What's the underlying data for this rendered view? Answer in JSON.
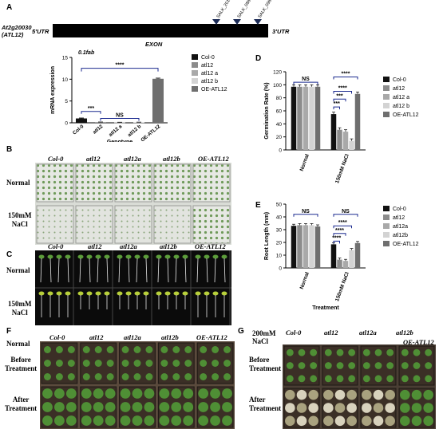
{
  "panel_labels": {
    "a": "A",
    "b": "B",
    "c": "C",
    "d": "D",
    "e": "E",
    "f": "F",
    "g": "G"
  },
  "gene_model": {
    "gene_name_line1": "At2g20030",
    "gene_name_line2": "(ATL12)",
    "utr5": "5'UTR",
    "utr3": "3'UTR",
    "exon": "EXON",
    "insertions": [
      "SALK_201558C",
      "SALK_086832C",
      "SALK_096538C"
    ]
  },
  "genotypes_plates": [
    "Col-0",
    "atl12",
    "atl12a",
    "atl12b",
    "OE-ATL12"
  ],
  "row_labels": {
    "normal": "Normal",
    "nacl150_line1": "150mM",
    "nacl150_line2": "NaCl",
    "before_line1": "Before",
    "before_line2": "Treatment",
    "after_line1": "After",
    "after_line2": "Treatment",
    "nacl200_line1": "200mM",
    "nacl200_line2": "NaCl"
  },
  "colors": {
    "col0": "#111111",
    "atl12": "#8c8c8c",
    "atl12a": "#a9a9a9",
    "atl12b": "#d3d3d3",
    "oe": "#6f6f6f",
    "significance": "#1b2a8f",
    "gene_bar": "#000000"
  },
  "chart_data": [
    {
      "type": "bar",
      "panel": "A",
      "annotation": "0.1fab",
      "categories": [
        "Col-0",
        "atl12",
        "atl12 a",
        "atl12 b",
        "OE-ATL12"
      ],
      "values": [
        1.0,
        0.15,
        0.1,
        0.12,
        10.1
      ],
      "errors": [
        0.1,
        0.03,
        0.03,
        0.03,
        0.15
      ],
      "xlabel": "Genotype",
      "ylabel": "mRNA expression",
      "ylim": [
        0,
        15
      ],
      "yticks": [
        "0",
        "5",
        "10",
        "15"
      ],
      "legend": [
        "Col-0",
        "atl12",
        "atl12 a",
        "atl12 b",
        "OE-ATL12"
      ],
      "legend_position": "right",
      "significance": [
        {
          "label": "****",
          "from": 0,
          "to": 4
        },
        {
          "label": "***",
          "from": 0,
          "to": 1
        },
        {
          "label": "NS",
          "from": 1,
          "to": 3
        }
      ]
    },
    {
      "type": "bar",
      "panel": "D",
      "categories": [
        "Normal",
        "150mM NaCl"
      ],
      "series": [
        {
          "name": "Col-0",
          "values": [
            97,
            55
          ]
        },
        {
          "name": "atl12",
          "values": [
            97,
            31
          ]
        },
        {
          "name": "atl12 a",
          "values": [
            97,
            28
          ]
        },
        {
          "name": "atl12 b",
          "values": [
            97,
            14
          ]
        },
        {
          "name": "OE-ATL12",
          "values": [
            97,
            86
          ]
        }
      ],
      "ylabel": "Germination Rate (%)",
      "ylim": [
        0,
        120
      ],
      "yticks": [
        "0",
        "20",
        "40",
        "60",
        "80",
        "100",
        "120"
      ],
      "legend_position": "right",
      "significance": [
        {
          "label": "NS",
          "group": "Normal"
        },
        {
          "label": "****",
          "from": 0,
          "to": 4
        },
        {
          "label": "****",
          "from": 0,
          "to": 3
        },
        {
          "label": "***",
          "from": 0,
          "to": 2
        },
        {
          "label": "***",
          "from": 0,
          "to": 1
        }
      ]
    },
    {
      "type": "bar",
      "panel": "E",
      "categories": [
        "Normal",
        "150mM NaCl"
      ],
      "series": [
        {
          "name": "Col-0",
          "values": [
            33,
            18.5
          ]
        },
        {
          "name": "atl12",
          "values": [
            33.5,
            6.5
          ]
        },
        {
          "name": "atl12a",
          "values": [
            33.5,
            5.5
          ]
        },
        {
          "name": "atl12b",
          "values": [
            33.5,
            14
          ]
        },
        {
          "name": "OE-ATL12",
          "values": [
            32.5,
            19.5
          ]
        }
      ],
      "xlabel": "Treatment",
      "ylabel": "Root Length (mm)",
      "ylim": [
        0,
        50
      ],
      "yticks": [
        "0",
        "10",
        "20",
        "30",
        "40",
        "50"
      ],
      "legend_position": "right",
      "significance": [
        {
          "label": "NS",
          "group": "Normal"
        },
        {
          "label": "NS",
          "group": "150mM NaCl"
        },
        {
          "label": "****",
          "from": 0,
          "to": 3
        },
        {
          "label": "****",
          "from": 0,
          "to": 2
        },
        {
          "label": "****",
          "from": 0,
          "to": 1
        }
      ]
    }
  ]
}
